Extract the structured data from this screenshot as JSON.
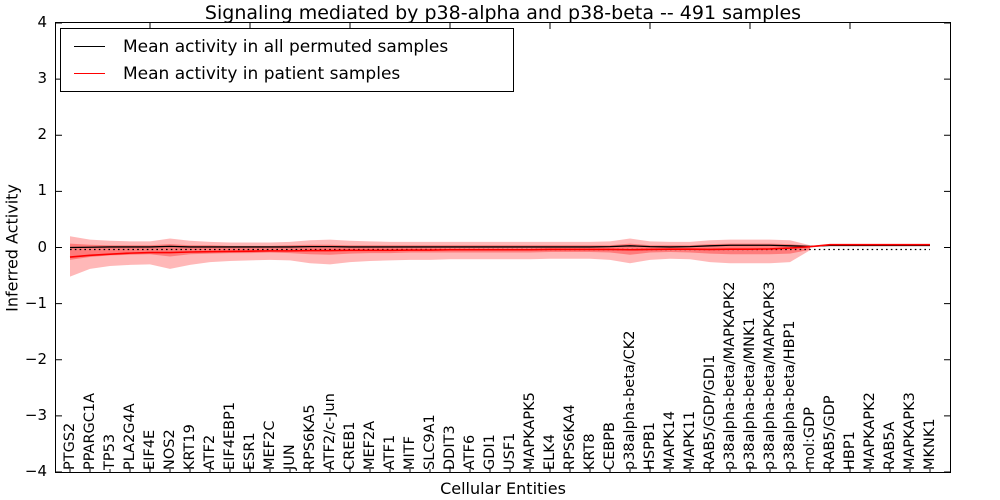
{
  "chart_data": {
    "type": "line",
    "title": "Signaling mediated by p38-alpha and p38-beta -- 491 samples",
    "xlabel": "Cellular Entities",
    "ylabel": "Inferred Activity",
    "ylim": [
      -4,
      4
    ],
    "yticks": [
      4,
      3,
      2,
      1,
      0,
      -1,
      -2,
      -3,
      -4
    ],
    "x_major_ticks": [
      5,
      10,
      15,
      20,
      25,
      30,
      35,
      40
    ],
    "grid": false,
    "legend": {
      "position": "upper left",
      "entries": [
        {
          "label": "Mean activity in all permuted samples",
          "color": "#000000",
          "style": "solid"
        },
        {
          "label": "Mean activity in patient samples",
          "color": "#ff0000",
          "style": "solid"
        }
      ]
    },
    "categories": [
      "PTGS2",
      "PPARGC1A",
      "TP53",
      "PLA2G4A",
      "EIF4E",
      "NOS2",
      "KRT19",
      "ATF2",
      "EIF4EBP1",
      "ESR1",
      "MEF2C",
      "JUN",
      "RPS6KA5",
      "ATF2/c-Jun",
      "CREB1",
      "MEF2A",
      "ATF1",
      "MITF",
      "SLC9A1",
      "DDIT3",
      "ATF6",
      "GDI1",
      "USF1",
      "MAPKAPK5",
      "ELK4",
      "RPS6KA4",
      "KRT8",
      "CEBPB",
      "p38alpha-beta/CK2",
      "HSPB1",
      "MAPK14",
      "MAPK11",
      "RAB5/GDP/GDI1",
      "p38alpha-beta/MAPKAPK2",
      "p38alpha-beta/MNK1",
      "p38alpha-beta/MAPKAPK3",
      "p38alpha-beta/HBP1",
      "mol:GDP",
      "RAB5/GDP",
      "HBP1",
      "MAPKAPK2",
      "RAB5A",
      "MAPKAPK3",
      "MKNK1"
    ],
    "series": [
      {
        "name": "Mean activity in all permuted samples",
        "color": "#000000",
        "style": "solid",
        "width": 1.3,
        "values": [
          0.0,
          0.005,
          0.01,
          0.01,
          0.01,
          0.02,
          0.01,
          0.01,
          0.01,
          0.01,
          0.01,
          0.01,
          0.015,
          0.015,
          0.01,
          0.01,
          0.01,
          0.01,
          0.01,
          0.01,
          0.01,
          0.01,
          0.01,
          0.01,
          0.01,
          0.01,
          0.01,
          0.015,
          0.03,
          0.015,
          0.01,
          0.015,
          0.03,
          0.04,
          0.04,
          0.04,
          0.03,
          0.02,
          0.035,
          0.035,
          0.035,
          0.035,
          0.035,
          0.035
        ]
      },
      {
        "name": "baseline (dotted)",
        "color": "#000000",
        "style": "dotted",
        "width": 1.3,
        "values": [
          -0.035,
          -0.035,
          -0.035,
          -0.035,
          -0.035,
          -0.035,
          -0.035,
          -0.035,
          -0.035,
          -0.035,
          -0.035,
          -0.035,
          -0.035,
          -0.035,
          -0.035,
          -0.035,
          -0.035,
          -0.035,
          -0.035,
          -0.035,
          -0.035,
          -0.035,
          -0.035,
          -0.035,
          -0.035,
          -0.035,
          -0.035,
          -0.035,
          -0.035,
          -0.035,
          -0.035,
          -0.035,
          -0.035,
          -0.035,
          -0.035,
          -0.035,
          -0.035,
          -0.035,
          -0.035,
          -0.035,
          -0.035,
          -0.035,
          -0.035,
          -0.035
        ]
      },
      {
        "name": "Mean activity in patient samples",
        "color": "#ff0000",
        "style": "solid",
        "width": 1.6,
        "values": [
          -0.17,
          -0.14,
          -0.12,
          -0.1,
          -0.09,
          -0.09,
          -0.08,
          -0.075,
          -0.07,
          -0.065,
          -0.06,
          -0.06,
          -0.055,
          -0.055,
          -0.05,
          -0.05,
          -0.05,
          -0.045,
          -0.045,
          -0.04,
          -0.04,
          -0.04,
          -0.04,
          -0.04,
          -0.035,
          -0.035,
          -0.035,
          -0.035,
          -0.04,
          -0.035,
          -0.03,
          -0.03,
          -0.035,
          -0.03,
          -0.03,
          -0.025,
          -0.01,
          0.015,
          0.05,
          0.05,
          0.05,
          0.05,
          0.05,
          0.05
        ]
      }
    ],
    "bands": [
      {
        "name": "outer-2std",
        "color": "rgba(255,0,0,0.28)",
        "upper": [
          0.2,
          0.14,
          0.12,
          0.11,
          0.11,
          0.16,
          0.12,
          0.1,
          0.09,
          0.09,
          0.09,
          0.1,
          0.13,
          0.14,
          0.12,
          0.11,
          0.1,
          0.1,
          0.1,
          0.1,
          0.1,
          0.1,
          0.1,
          0.1,
          0.1,
          0.1,
          0.1,
          0.11,
          0.16,
          0.11,
          0.1,
          0.1,
          0.13,
          0.14,
          0.14,
          0.14,
          0.13,
          0.04
        ],
        "lower": [
          -0.52,
          -0.38,
          -0.33,
          -0.31,
          -0.3,
          -0.38,
          -0.31,
          -0.26,
          -0.24,
          -0.23,
          -0.22,
          -0.23,
          -0.28,
          -0.3,
          -0.26,
          -0.24,
          -0.23,
          -0.22,
          -0.22,
          -0.21,
          -0.21,
          -0.21,
          -0.21,
          -0.21,
          -0.2,
          -0.2,
          -0.2,
          -0.22,
          -0.28,
          -0.22,
          -0.2,
          -0.21,
          -0.26,
          -0.28,
          -0.28,
          -0.28,
          -0.26,
          -0.05
        ]
      },
      {
        "name": "inner-1std",
        "color": "rgba(255,0,0,0.33)",
        "upper": [
          0.07,
          0.05,
          0.04,
          0.04,
          0.04,
          0.06,
          0.04,
          0.04,
          0.03,
          0.03,
          0.03,
          0.04,
          0.05,
          0.05,
          0.04,
          0.04,
          0.04,
          0.04,
          0.04,
          0.04,
          0.04,
          0.04,
          0.04,
          0.04,
          0.04,
          0.04,
          0.04,
          0.04,
          0.07,
          0.04,
          0.04,
          0.04,
          0.06,
          0.07,
          0.07,
          0.07,
          0.06,
          0.03
        ],
        "lower": [
          -0.22,
          -0.17,
          -0.14,
          -0.13,
          -0.12,
          -0.16,
          -0.12,
          -0.11,
          -0.1,
          -0.1,
          -0.09,
          -0.1,
          -0.12,
          -0.13,
          -0.11,
          -0.1,
          -0.1,
          -0.09,
          -0.09,
          -0.09,
          -0.09,
          -0.09,
          -0.09,
          -0.09,
          -0.08,
          -0.08,
          -0.08,
          -0.09,
          -0.13,
          -0.09,
          -0.08,
          -0.09,
          -0.11,
          -0.12,
          -0.12,
          -0.12,
          -0.11,
          -0.04
        ]
      }
    ]
  }
}
